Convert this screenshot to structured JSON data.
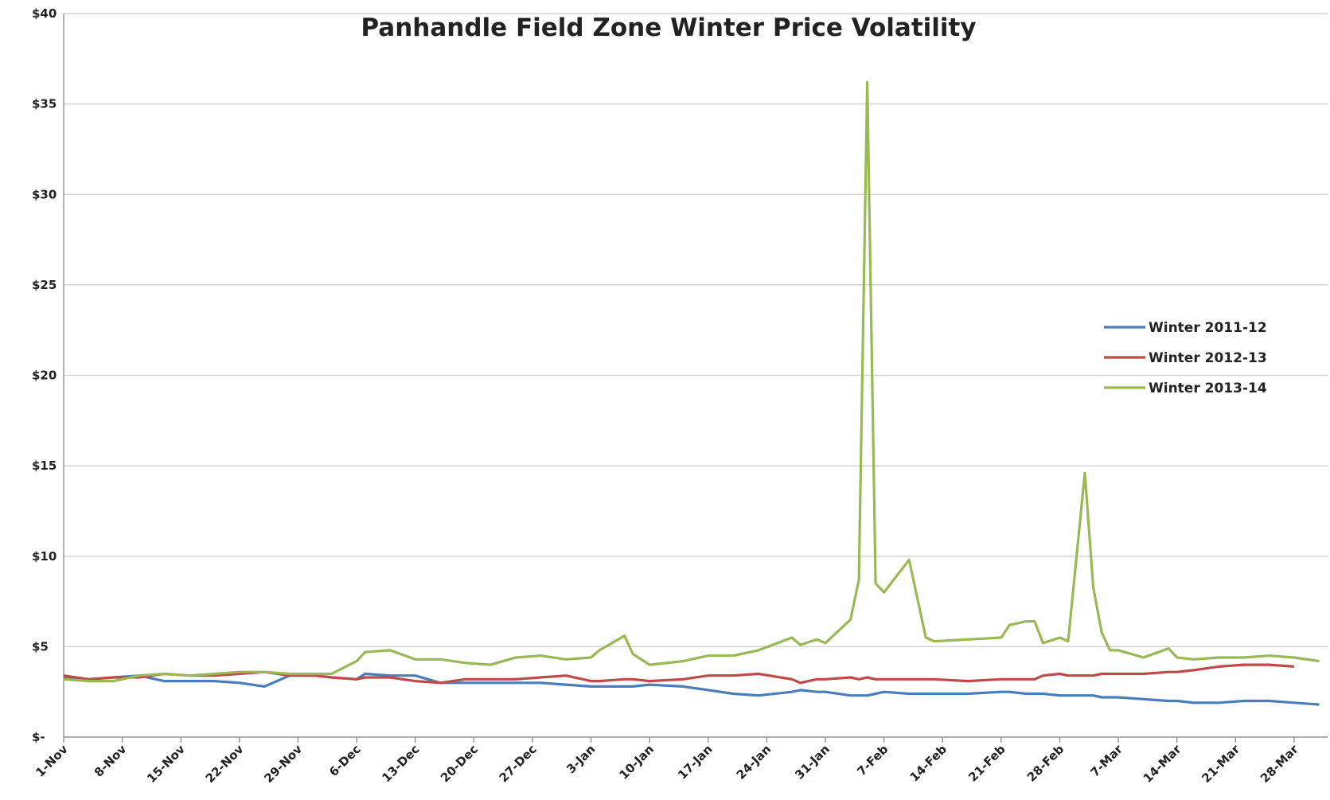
{
  "chart_data": {
    "type": "line",
    "title": "Panhandle Field Zone Winter Price Volatility",
    "x": [
      0,
      3,
      6,
      9,
      12,
      15,
      18,
      21,
      24,
      27,
      30,
      32,
      35,
      36,
      39,
      42,
      45,
      48,
      51,
      54,
      57,
      60,
      63,
      64,
      67,
      68,
      70,
      74,
      77,
      80,
      83,
      87,
      88,
      90,
      91,
      94,
      95,
      96,
      97,
      98,
      101,
      103,
      104,
      108,
      112,
      113,
      115,
      116,
      117,
      119,
      120,
      122,
      123,
      124,
      125,
      126,
      129,
      132,
      133,
      135,
      138,
      141,
      144,
      147,
      150
    ],
    "series": [
      {
        "name": "Winter 2011-12",
        "color": "#4a7ebb",
        "values": [
          3.3,
          3.2,
          3.3,
          3.4,
          3.1,
          3.1,
          3.1,
          3.0,
          2.8,
          3.4,
          3.4,
          3.3,
          3.2,
          3.5,
          3.4,
          3.4,
          3.0,
          3.0,
          3.0,
          3.0,
          3.0,
          2.9,
          2.8,
          2.8,
          2.8,
          2.8,
          2.9,
          2.8,
          2.6,
          2.4,
          2.3,
          2.5,
          2.6,
          2.5,
          2.5,
          2.3,
          2.3,
          2.3,
          2.4,
          2.5,
          2.4,
          2.4,
          2.4,
          2.4,
          2.5,
          2.5,
          2.4,
          2.4,
          2.4,
          2.3,
          2.3,
          2.3,
          2.3,
          2.2,
          2.2,
          2.2,
          2.1,
          2.0,
          2.0,
          1.9,
          1.9,
          2.0,
          2.0,
          1.9,
          1.8
        ]
      },
      {
        "name": "Winter 2012-13",
        "color": "#be4b48",
        "values": [
          3.4,
          3.2,
          3.3,
          3.3,
          3.5,
          3.4,
          3.4,
          3.5,
          3.6,
          3.4,
          3.4,
          3.3,
          3.2,
          3.3,
          3.3,
          3.1,
          3.0,
          3.2,
          3.2,
          3.2,
          3.3,
          3.4,
          3.1,
          3.1,
          3.2,
          3.2,
          3.1,
          3.2,
          3.4,
          3.4,
          3.5,
          3.2,
          3.0,
          3.2,
          3.2,
          3.3,
          3.2,
          3.3,
          3.2,
          3.2,
          3.2,
          3.2,
          3.2,
          3.1,
          3.2,
          3.2,
          3.2,
          3.2,
          3.4,
          3.5,
          3.4,
          3.4,
          3.4,
          3.5,
          3.5,
          3.5,
          3.5,
          3.6,
          3.6,
          3.7,
          3.9,
          4.0,
          4.0,
          3.9,
          null
        ]
      },
      {
        "name": "Winter 2013-14",
        "color": "#98b954",
        "values": [
          3.2,
          3.1,
          3.1,
          3.4,
          3.5,
          3.4,
          3.5,
          3.6,
          3.6,
          3.5,
          3.5,
          3.5,
          4.2,
          4.7,
          4.8,
          4.3,
          4.3,
          4.1,
          4.0,
          4.4,
          4.5,
          4.3,
          4.4,
          4.8,
          5.6,
          4.6,
          4.0,
          4.2,
          4.5,
          4.5,
          4.8,
          5.5,
          5.1,
          5.4,
          5.2,
          6.5,
          8.7,
          36.2,
          8.5,
          8.0,
          9.8,
          5.5,
          5.3,
          5.4,
          5.5,
          6.2,
          6.4,
          6.4,
          5.2,
          5.5,
          5.3,
          14.6,
          8.3,
          5.8,
          4.8,
          4.8,
          4.4,
          4.9,
          4.4,
          4.3,
          4.4,
          4.4,
          4.5,
          4.4,
          4.2
        ]
      }
    ],
    "xlim": [
      0,
      151
    ],
    "xticks": [
      {
        "value": 0,
        "label": "1-Nov"
      },
      {
        "value": 7,
        "label": "8-Nov"
      },
      {
        "value": 14,
        "label": "15-Nov"
      },
      {
        "value": 21,
        "label": "22-Nov"
      },
      {
        "value": 28,
        "label": "29-Nov"
      },
      {
        "value": 35,
        "label": "6-Dec"
      },
      {
        "value": 42,
        "label": "13-Dec"
      },
      {
        "value": 49,
        "label": "20-Dec"
      },
      {
        "value": 56,
        "label": "27-Dec"
      },
      {
        "value": 63,
        "label": "3-Jan"
      },
      {
        "value": 70,
        "label": "10-Jan"
      },
      {
        "value": 77,
        "label": "17-Jan"
      },
      {
        "value": 84,
        "label": "24-Jan"
      },
      {
        "value": 91,
        "label": "31-Jan"
      },
      {
        "value": 98,
        "label": "7-Feb"
      },
      {
        "value": 105,
        "label": "14-Feb"
      },
      {
        "value": 112,
        "label": "21-Feb"
      },
      {
        "value": 119,
        "label": "28-Feb"
      },
      {
        "value": 126,
        "label": "7-Mar"
      },
      {
        "value": 133,
        "label": "14-Mar"
      },
      {
        "value": 140,
        "label": "21-Mar"
      },
      {
        "value": 147,
        "label": "28-Mar"
      }
    ],
    "ylim": [
      0,
      40
    ],
    "yticks": [
      {
        "value": 0,
        "label": "$-"
      },
      {
        "value": 5,
        "label": "$5"
      },
      {
        "value": 10,
        "label": "$10"
      },
      {
        "value": 15,
        "label": "$15"
      },
      {
        "value": 20,
        "label": "$20"
      },
      {
        "value": 25,
        "label": "$25"
      },
      {
        "value": 30,
        "label": "$30"
      },
      {
        "value": 35,
        "label": "$35"
      },
      {
        "value": 40,
        "label": "$40"
      }
    ],
    "grid": true,
    "legend": "right"
  }
}
